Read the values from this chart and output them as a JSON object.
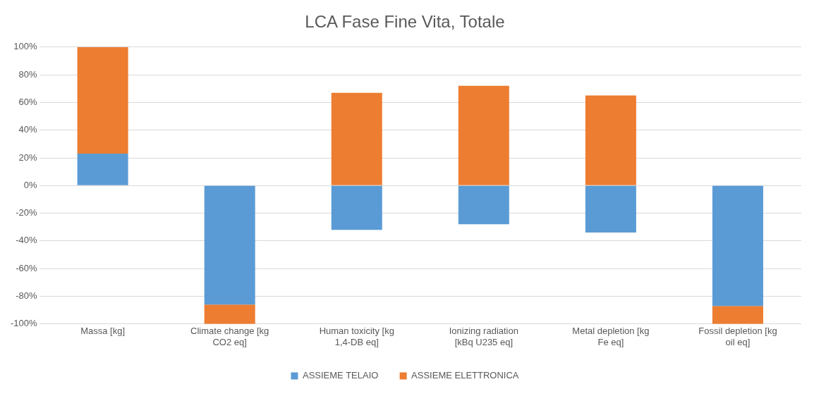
{
  "chart_data": {
    "type": "bar",
    "title": "LCA Fase Fine Vita, Totale",
    "stacked": true,
    "categories": [
      "Massa [kg]",
      "Climate change [kg CO2 eq]",
      "Human toxicity [kg 1,4-DB eq]",
      "Ionizing radiation [kBq U235 eq]",
      "Metal depletion [kg Fe eq]",
      "Fossil depletion [kg oil eq]"
    ],
    "series": [
      {
        "name": "ASSIEME TELAIO",
        "color": "#5b9bd5",
        "values": [
          23,
          -86,
          -32,
          -28,
          -34,
          -87
        ]
      },
      {
        "name": "ASSIEME ELETTRONICA",
        "color": "#ed7d31",
        "values": [
          77,
          -14,
          67,
          72,
          65,
          -13
        ]
      }
    ],
    "ylim": [
      -100,
      100
    ],
    "yticks": [
      {
        "value": -100,
        "label": "-100%"
      },
      {
        "value": -80,
        "label": "-80%"
      },
      {
        "value": -60,
        "label": "-60%"
      },
      {
        "value": -40,
        "label": "-40%"
      },
      {
        "value": -20,
        "label": "-20%"
      },
      {
        "value": 0,
        "label": "0%"
      },
      {
        "value": 20,
        "label": "20%"
      },
      {
        "value": 40,
        "label": "40%"
      },
      {
        "value": 60,
        "label": "60%"
      },
      {
        "value": 80,
        "label": "80%"
      },
      {
        "value": 100,
        "label": "100%"
      }
    ],
    "grid": "y",
    "legend": "bottom"
  }
}
